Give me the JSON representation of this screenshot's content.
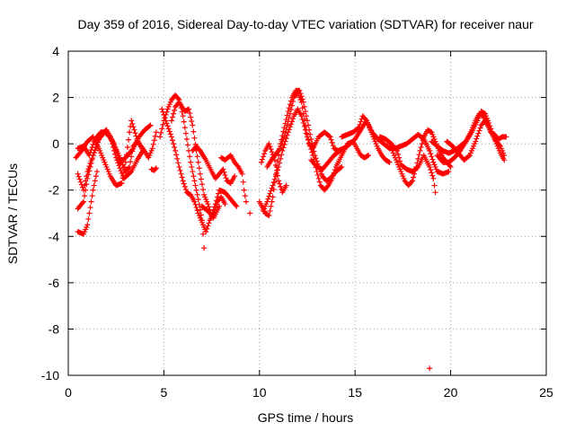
{
  "chart_data": {
    "type": "scatter",
    "title": "Day 359 of 2016, Sidereal Day-to-day VTEC variation (SDTVAR) for receiver naur",
    "xlabel": "GPS time / hours",
    "ylabel": "SDTVAR / TECUs",
    "xlim": [
      0,
      25
    ],
    "ylim": [
      -10,
      4
    ],
    "xticks": [
      0,
      5,
      10,
      15,
      20,
      25
    ],
    "yticks": [
      -10,
      -8,
      -6,
      -4,
      -2,
      0,
      2,
      4
    ],
    "xtick_labels": [
      "0",
      "5",
      "10",
      "15",
      "20",
      "25"
    ],
    "ytick_labels": [
      "-10",
      "-8",
      "-6",
      "-4",
      "-2",
      "0",
      "2",
      "4"
    ],
    "grid": true,
    "marker": "+",
    "color": "#ff0000",
    "traces": [
      [
        [
          0.5,
          -1.3
        ],
        [
          0.8,
          -2.0
        ],
        [
          1.0,
          -1.2
        ],
        [
          1.3,
          -0.5
        ],
        [
          1.7,
          0.4
        ],
        [
          2.0,
          0.6
        ],
        [
          2.4,
          0.0
        ],
        [
          2.7,
          -0.8
        ],
        [
          3.0,
          -0.6
        ],
        [
          3.4,
          -0.2
        ],
        [
          3.7,
          0.3
        ],
        [
          4.0,
          0.6
        ],
        [
          4.3,
          0.8
        ]
      ],
      [
        [
          0.5,
          -2.8
        ],
        [
          0.8,
          -2.5
        ],
        [
          1.0,
          -1.5
        ],
        [
          1.3,
          -0.5
        ],
        [
          1.6,
          0.2
        ],
        [
          1.9,
          0.5
        ],
        [
          2.2,
          0.3
        ],
        [
          2.5,
          -0.6
        ],
        [
          2.9,
          -1.5
        ],
        [
          3.3,
          -1.2
        ],
        [
          3.6,
          -0.7
        ],
        [
          3.9,
          -0.3
        ]
      ],
      [
        [
          0.5,
          -3.8
        ],
        [
          0.8,
          -3.9
        ],
        [
          1.0,
          -3.5
        ],
        [
          1.3,
          -2.0
        ],
        [
          1.5,
          -1.2
        ]
      ],
      [
        [
          0.4,
          -0.6
        ],
        [
          0.7,
          -0.3
        ],
        [
          1.0,
          0.1
        ],
        [
          1.3,
          0.3
        ],
        [
          1.6,
          -0.2
        ],
        [
          1.9,
          -0.8
        ],
        [
          2.2,
          -1.4
        ],
        [
          2.5,
          -1.8
        ],
        [
          2.8,
          -1.7
        ],
        [
          3.0,
          -0.8
        ],
        [
          3.2,
          0.5
        ],
        [
          3.3,
          1.0
        ],
        [
          3.6,
          0.2
        ],
        [
          3.9,
          -0.3
        ]
      ],
      [
        [
          0.5,
          -0.2
        ],
        [
          0.8,
          -0.1
        ],
        [
          1.1,
          -0.5
        ],
        [
          1.4,
          0.2
        ],
        [
          1.7,
          0.5
        ],
        [
          2.0,
          0.5
        ],
        [
          2.3,
          0.1
        ],
        [
          2.6,
          -0.4
        ],
        [
          3.0,
          -1.2
        ],
        [
          3.2,
          -1.0
        ],
        [
          3.4,
          -0.1
        ],
        [
          3.6,
          0.1
        ],
        [
          3.9,
          -0.2
        ],
        [
          4.2,
          -0.6
        ],
        [
          4.4,
          -0.2
        ],
        [
          4.6,
          0.5
        ]
      ],
      [
        [
          4.35,
          -1.1
        ],
        [
          4.5,
          -1.15
        ],
        [
          4.6,
          -1.05
        ]
      ],
      [
        [
          4.8,
          0.3
        ],
        [
          5.0,
          1.0
        ],
        [
          5.2,
          1.5
        ],
        [
          5.4,
          1.9
        ],
        [
          5.6,
          2.1
        ],
        [
          5.8,
          1.9
        ],
        [
          6.0,
          1.2
        ],
        [
          6.2,
          0.2
        ],
        [
          6.4,
          -0.8
        ],
        [
          6.6,
          -1.6
        ],
        [
          6.8,
          -2.4
        ],
        [
          7.0,
          -3.3
        ],
        [
          7.1,
          -4.5
        ]
      ],
      [
        [
          4.9,
          1.5
        ],
        [
          5.1,
          1.0
        ],
        [
          5.4,
          0.3
        ],
        [
          5.6,
          -0.3
        ],
        [
          5.8,
          -1.0
        ],
        [
          6.0,
          -1.6
        ],
        [
          6.2,
          -2.1
        ],
        [
          6.4,
          -2.2
        ],
        [
          6.6,
          -2.5
        ],
        [
          6.8,
          -3.0
        ],
        [
          7.0,
          -3.4
        ],
        [
          7.2,
          -3.8
        ],
        [
          7.4,
          -3.3
        ],
        [
          7.6,
          -3.0
        ],
        [
          7.8,
          -2.5
        ],
        [
          8.0,
          -2.3
        ],
        [
          8.2,
          -2.6
        ]
      ],
      [
        [
          5.4,
          1.0
        ],
        [
          5.6,
          1.6
        ],
        [
          5.8,
          1.8
        ],
        [
          6.1,
          1.4
        ],
        [
          6.3,
          1.5
        ],
        [
          6.5,
          0.8
        ],
        [
          6.7,
          -0.3
        ],
        [
          6.9,
          -1.3
        ],
        [
          7.1,
          -2.2
        ],
        [
          7.3,
          -2.6
        ],
        [
          7.5,
          -3.1
        ],
        [
          7.7,
          -2.6
        ],
        [
          7.9,
          -2.0
        ],
        [
          8.2,
          -2.1
        ],
        [
          8.5,
          -2.4
        ],
        [
          8.8,
          -2.7
        ]
      ],
      [
        [
          6.5,
          -0.3
        ],
        [
          6.7,
          -0.1
        ],
        [
          6.9,
          -0.3
        ],
        [
          7.2,
          -0.7
        ],
        [
          7.5,
          -1.2
        ],
        [
          7.7,
          -1.5
        ],
        [
          7.9,
          -1.3
        ],
        [
          8.1,
          -1.1
        ],
        [
          8.3,
          -1.6
        ],
        [
          8.5,
          -1.7
        ],
        [
          8.7,
          -1.4
        ]
      ],
      [
        [
          7.0,
          -2.7
        ],
        [
          7.3,
          -2.9
        ],
        [
          7.6,
          -3.2
        ],
        [
          7.9,
          -2.7
        ]
      ],
      [
        [
          8.0,
          -0.6
        ],
        [
          8.2,
          -0.7
        ],
        [
          8.5,
          -0.5
        ],
        [
          8.7,
          -0.8
        ],
        [
          8.9,
          -1.0
        ],
        [
          9.1,
          -1.3
        ],
        [
          9.2,
          -2.0
        ],
        [
          9.3,
          -2.5
        ]
      ],
      [
        [
          9.5,
          -3.0
        ]
      ],
      [
        [
          10.0,
          -2.5
        ],
        [
          10.3,
          -3.0
        ],
        [
          10.5,
          -3.1
        ],
        [
          10.7,
          -2.3
        ],
        [
          10.9,
          -1.0
        ],
        [
          11.1,
          0.0
        ],
        [
          11.3,
          0.7
        ],
        [
          11.5,
          1.4
        ],
        [
          11.7,
          2.0
        ],
        [
          11.9,
          2.3
        ],
        [
          12.1,
          2.3
        ],
        [
          12.3,
          1.8
        ],
        [
          12.5,
          1.0
        ],
        [
          12.7,
          0.2
        ],
        [
          12.9,
          -0.5
        ],
        [
          13.1,
          -1.0
        ],
        [
          13.3,
          -1.4
        ],
        [
          13.5,
          -1.6
        ],
        [
          13.7,
          -1.5
        ],
        [
          14.0,
          -1.2
        ],
        [
          14.3,
          -1.0
        ]
      ],
      [
        [
          10.2,
          -2.9
        ],
        [
          10.4,
          -2.5
        ],
        [
          10.7,
          -1.8
        ],
        [
          11.0,
          -1.0
        ],
        [
          11.2,
          -0.3
        ],
        [
          11.5,
          0.5
        ],
        [
          11.8,
          1.2
        ],
        [
          12.0,
          1.5
        ],
        [
          12.2,
          1.2
        ],
        [
          12.5,
          0.3
        ],
        [
          12.8,
          -0.5
        ],
        [
          13.0,
          -1.2
        ],
        [
          13.2,
          -1.8
        ],
        [
          13.4,
          -2.0
        ],
        [
          13.6,
          -1.8
        ],
        [
          13.8,
          -1.5
        ],
        [
          14.0,
          -1.0
        ],
        [
          14.3,
          -0.5
        ],
        [
          14.6,
          0.0
        ],
        [
          14.9,
          0.1
        ],
        [
          15.1,
          -0.2
        ],
        [
          15.3,
          -0.5
        ],
        [
          15.5,
          -0.6
        ],
        [
          15.7,
          -0.5
        ]
      ],
      [
        [
          10.4,
          -1.0
        ],
        [
          10.7,
          -0.6
        ],
        [
          11.0,
          -0.3
        ],
        [
          11.3,
          0.3
        ],
        [
          11.6,
          1.3
        ],
        [
          11.8,
          2.0
        ],
        [
          12.0,
          2.2
        ],
        [
          12.2,
          1.8
        ],
        [
          12.4,
          0.8
        ],
        [
          12.6,
          0.0
        ],
        [
          12.8,
          -0.2
        ],
        [
          13.1,
          0.3
        ],
        [
          13.4,
          0.5
        ],
        [
          13.7,
          0.3
        ],
        [
          13.9,
          -0.2
        ],
        [
          14.1,
          -0.3
        ],
        [
          14.4,
          -0.2
        ]
      ],
      [
        [
          10.1,
          -0.8
        ],
        [
          10.3,
          -0.3
        ],
        [
          10.5,
          0.0
        ],
        [
          10.8,
          -0.7
        ],
        [
          11.0,
          -1.6
        ],
        [
          11.2,
          -2.1
        ],
        [
          11.4,
          -1.8
        ]
      ],
      [
        [
          12.7,
          -0.7
        ],
        [
          13.0,
          -1.0
        ],
        [
          13.3,
          -1.1
        ],
        [
          13.6,
          -0.8
        ],
        [
          13.9,
          -0.5
        ],
        [
          14.2,
          -0.3
        ],
        [
          14.6,
          -0.1
        ],
        [
          15.0,
          0.2
        ],
        [
          15.3,
          0.6
        ],
        [
          15.6,
          1.0
        ],
        [
          15.8,
          0.6
        ],
        [
          16.0,
          0.2
        ],
        [
          16.2,
          -0.2
        ],
        [
          16.4,
          -0.5
        ],
        [
          16.6,
          -0.7
        ],
        [
          16.8,
          -0.8
        ]
      ],
      [
        [
          14.3,
          0.3
        ],
        [
          14.6,
          0.4
        ],
        [
          14.9,
          0.5
        ],
        [
          15.2,
          0.7
        ],
        [
          15.4,
          1.2
        ],
        [
          15.6,
          1.0
        ],
        [
          15.9,
          0.5
        ],
        [
          16.2,
          0.2
        ],
        [
          16.5,
          0.0
        ],
        [
          16.8,
          -0.2
        ],
        [
          17.1,
          -0.2
        ],
        [
          17.4,
          -0.1
        ],
        [
          17.7,
          0.0
        ],
        [
          18.0,
          0.2
        ],
        [
          18.3,
          0.4
        ],
        [
          18.6,
          0.2
        ],
        [
          18.9,
          -0.3
        ],
        [
          19.1,
          -0.8
        ],
        [
          19.3,
          -1.2
        ],
        [
          19.6,
          -1.3
        ],
        [
          19.9,
          -1.2
        ]
      ],
      [
        [
          16.8,
          0.0
        ],
        [
          17.0,
          -0.4
        ],
        [
          17.2,
          -0.8
        ],
        [
          17.4,
          -1.2
        ],
        [
          17.6,
          -1.6
        ],
        [
          17.8,
          -1.8
        ],
        [
          18.0,
          -1.6
        ],
        [
          18.2,
          -1.0
        ],
        [
          18.4,
          -0.3
        ],
        [
          18.6,
          0.3
        ],
        [
          18.8,
          0.6
        ],
        [
          19.0,
          0.5
        ],
        [
          19.2,
          0.1
        ],
        [
          19.4,
          -0.3
        ],
        [
          19.6,
          -0.6
        ],
        [
          19.8,
          -0.8
        ],
        [
          20.0,
          -1.0
        ]
      ],
      [
        [
          16.3,
          0.3
        ],
        [
          16.6,
          0.2
        ],
        [
          16.9,
          0.0
        ],
        [
          17.2,
          -0.3
        ],
        [
          17.4,
          -0.9
        ],
        [
          17.7,
          -1.1
        ],
        [
          18.0,
          -1.2
        ],
        [
          18.3,
          -1.0
        ],
        [
          18.6,
          -0.5
        ],
        [
          18.9,
          -1.0
        ],
        [
          19.1,
          -1.5
        ],
        [
          19.2,
          -2.1
        ]
      ],
      [
        [
          18.9,
          -9.7
        ]
      ],
      [
        [
          19.0,
          0.1
        ],
        [
          19.3,
          -0.1
        ],
        [
          19.6,
          -0.3
        ],
        [
          19.9,
          -0.4
        ],
        [
          20.2,
          -0.3
        ],
        [
          20.5,
          -0.1
        ],
        [
          20.8,
          0.1
        ],
        [
          21.1,
          0.5
        ],
        [
          21.4,
          1.0
        ],
        [
          21.6,
          1.4
        ],
        [
          21.8,
          1.3
        ],
        [
          22.0,
          0.9
        ],
        [
          22.2,
          0.4
        ],
        [
          22.4,
          0.0
        ],
        [
          22.6,
          -0.4
        ],
        [
          22.8,
          -0.7
        ]
      ],
      [
        [
          19.3,
          -0.5
        ],
        [
          19.6,
          -0.8
        ],
        [
          19.9,
          -0.8
        ],
        [
          20.2,
          -0.6
        ],
        [
          20.5,
          -0.3
        ],
        [
          20.8,
          0.1
        ],
        [
          21.1,
          0.6
        ],
        [
          21.3,
          1.0
        ],
        [
          21.5,
          1.3
        ],
        [
          21.7,
          1.2
        ],
        [
          21.9,
          0.9
        ],
        [
          22.1,
          0.5
        ],
        [
          22.3,
          0.4
        ],
        [
          22.5,
          0.2
        ],
        [
          22.7,
          0.3
        ],
        [
          22.9,
          0.3
        ]
      ],
      [
        [
          19.8,
          0.1
        ],
        [
          20.1,
          -0.1
        ],
        [
          20.4,
          -0.4
        ],
        [
          20.7,
          -0.7
        ],
        [
          21.0,
          -0.5
        ],
        [
          21.3,
          0.1
        ],
        [
          21.6,
          0.8
        ],
        [
          21.8,
          1.0
        ],
        [
          22.0,
          0.7
        ],
        [
          22.3,
          0.2
        ],
        [
          22.6,
          -0.1
        ],
        [
          22.8,
          -0.5
        ]
      ]
    ]
  }
}
